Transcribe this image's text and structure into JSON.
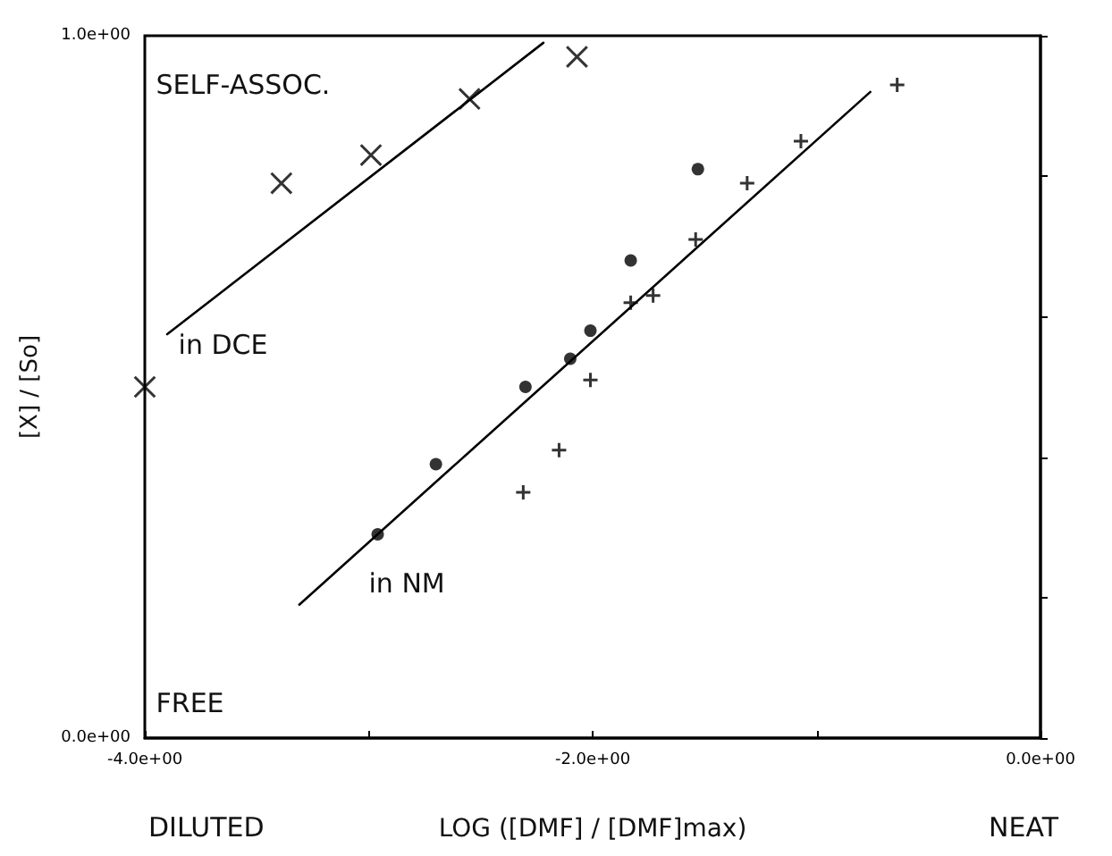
{
  "chart_data": {
    "type": "scatter",
    "xlabel": "LOG ([DMF] / [DMF]max)",
    "ylabel": "[X] / [So]",
    "annotations": [
      "SELF-ASSOC.",
      "in DCE",
      "in NM",
      "FREE",
      "DILUTED",
      "NEAT"
    ],
    "xlim": [
      -4,
      0
    ],
    "ylim": [
      0,
      1
    ],
    "xticks": [
      {
        "value": -4,
        "label": "-4.0e+00"
      },
      {
        "value": -3,
        "label": null
      },
      {
        "value": -2,
        "label": "-2.0e+00"
      },
      {
        "value": -1,
        "label": null
      },
      {
        "value": 0,
        "label": "0.0e+00"
      }
    ],
    "yticks": [
      {
        "value": 0,
        "label": "0.0e+00"
      },
      {
        "value": 0.2,
        "label": null
      },
      {
        "value": 0.4,
        "label": null
      },
      {
        "value": 0.6,
        "label": null
      },
      {
        "value": 0.8,
        "label": null
      },
      {
        "value": 1,
        "label": "1.0e+00"
      }
    ],
    "grid": false,
    "series": [
      {
        "marker": "cross",
        "color": "#000000",
        "x": [
          -4.0,
          -3.39,
          -2.99,
          -2.55,
          -2.07
        ],
        "values": [
          0.5,
          0.79,
          0.83,
          0.91,
          0.97
        ]
      },
      {
        "marker": "circle",
        "color": "#000000",
        "x": [
          -2.96,
          -2.7,
          -2.3,
          -2.1,
          -2.01,
          -1.83,
          -1.53
        ],
        "values": [
          0.29,
          0.39,
          0.5,
          0.54,
          0.58,
          0.68,
          0.81
        ]
      },
      {
        "marker": "cross",
        "color": "#000000",
        "x": [
          -2.31,
          -2.15,
          -2.01,
          -1.83,
          -1.73,
          -1.54,
          -1.31,
          -1.07,
          -0.64
        ],
        "values": [
          0.35,
          0.41,
          0.51,
          0.62,
          0.63,
          0.71,
          0.79,
          0.85,
          0.93
        ]
      },
      {
        "type": "line",
        "marker": "none",
        "line_style": "solid",
        "color": "#000000",
        "x": [
          -3.9,
          -2.22
        ],
        "values": [
          0.575,
          0.99
        ]
      },
      {
        "type": "line",
        "marker": "none",
        "line_style": "solid",
        "color": "#000000",
        "x": [
          -3.31,
          -0.76
        ],
        "values": [
          0.19,
          0.92
        ]
      }
    ]
  }
}
